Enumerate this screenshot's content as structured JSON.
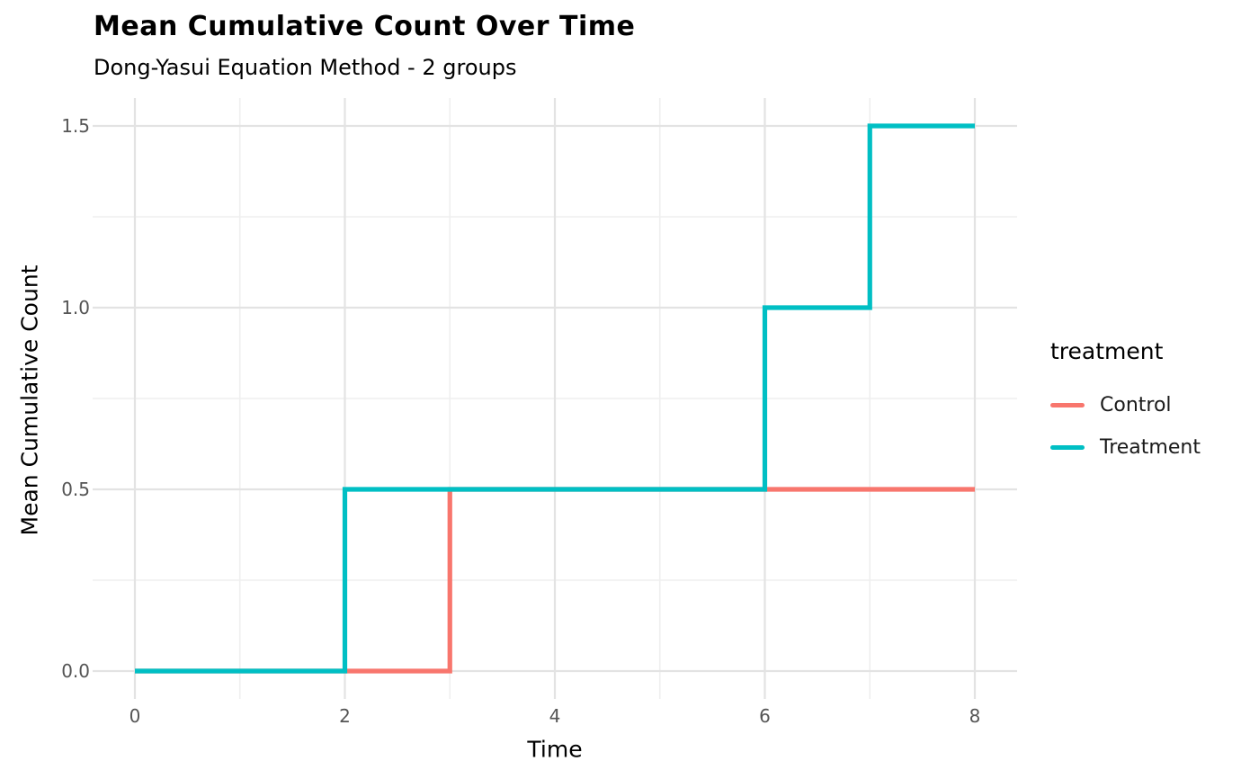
{
  "chart_data": {
    "type": "line",
    "subtype": "step",
    "title": "Mean Cumulative Count Over Time",
    "subtitle": "Dong-Yasui Equation Method - 2 groups",
    "xlabel": "Time",
    "ylabel": "Mean Cumulative Count",
    "xlim": [
      0,
      8
    ],
    "ylim": [
      0,
      1.5
    ],
    "grid": true,
    "x_major_ticks": [
      0,
      2,
      4,
      6,
      8
    ],
    "x_tick_labels": [
      "0",
      "2",
      "4",
      "6",
      "8"
    ],
    "x_minor_ticks": [
      1,
      3,
      5,
      7
    ],
    "y_major_ticks": [
      0,
      0.5,
      1.0,
      1.5
    ],
    "y_tick_labels": [
      "0.0",
      "0.5",
      "1.0",
      "1.5"
    ],
    "y_minor_ticks": [
      0.25,
      0.75,
      1.25
    ],
    "legend": {
      "title": "treatment",
      "position": "right",
      "items": [
        {
          "label": "Control",
          "color": "#F8766D"
        },
        {
          "label": "Treatment",
          "color": "#00BFC4"
        }
      ]
    },
    "series": [
      {
        "name": "Control",
        "color": "#F8766D",
        "step_points": [
          [
            0,
            0
          ],
          [
            3,
            0
          ],
          [
            3,
            0.5
          ],
          [
            8,
            0.5
          ]
        ]
      },
      {
        "name": "Treatment",
        "color": "#00BFC4",
        "step_points": [
          [
            0,
            0
          ],
          [
            2,
            0
          ],
          [
            2,
            0.5
          ],
          [
            6,
            0.5
          ],
          [
            6,
            1.0
          ],
          [
            7,
            1.0
          ],
          [
            7,
            1.5
          ],
          [
            8,
            1.5
          ]
        ]
      }
    ],
    "colors": {
      "major_grid": "#E3E3E3",
      "minor_grid": "#EFEFEF",
      "tick_label": "#555555",
      "background": "#FFFFFF"
    }
  }
}
